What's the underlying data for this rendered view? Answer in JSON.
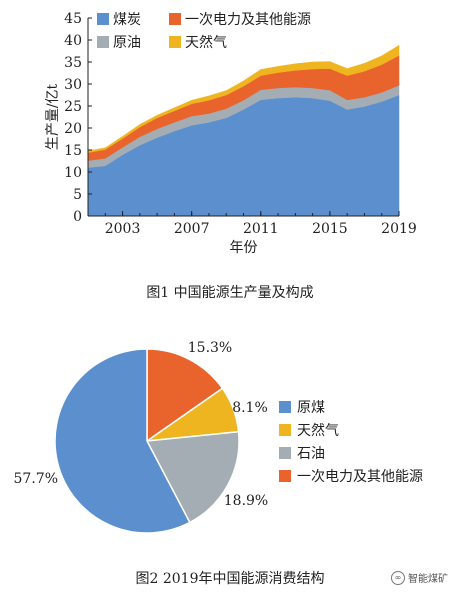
{
  "figure1": {
    "caption": "图1  中国能源生产量及构成",
    "chart_data": {
      "type": "area",
      "stacked": true,
      "x": [
        2001,
        2002,
        2003,
        2004,
        2005,
        2006,
        2007,
        2008,
        2009,
        2010,
        2011,
        2012,
        2013,
        2014,
        2015,
        2016,
        2017,
        2018,
        2019
      ],
      "series": [
        {
          "name": "煤炭",
          "color": "#5b8fce",
          "values": [
            11.0,
            11.4,
            13.9,
            16.1,
            17.8,
            19.3,
            20.6,
            21.3,
            22.3,
            24.2,
            26.4,
            26.8,
            27.0,
            26.8,
            26.2,
            24.2,
            24.9,
            26.0,
            27.5
          ]
        },
        {
          "name": "原油",
          "color": "#a3adb3",
          "values": [
            1.6,
            1.7,
            1.7,
            1.9,
            2.0,
            2.0,
            2.1,
            2.0,
            2.1,
            2.1,
            2.3,
            2.3,
            2.3,
            2.3,
            2.4,
            2.2,
            2.1,
            2.1,
            2.2
          ]
        },
        {
          "name": "一次电力及其他能源",
          "color": "#e8642c",
          "values": [
            1.8,
            2.0,
            2.0,
            2.2,
            2.5,
            2.6,
            2.8,
            3.0,
            3.1,
            3.2,
            3.2,
            3.5,
            3.8,
            4.3,
            4.9,
            5.5,
            5.9,
            6.3,
            6.8
          ]
        },
        {
          "name": "天然气",
          "color": "#efb521",
          "values": [
            0.4,
            0.4,
            0.5,
            0.6,
            0.6,
            0.7,
            0.8,
            1.0,
            1.0,
            1.2,
            1.4,
            1.4,
            1.5,
            1.6,
            1.6,
            1.6,
            1.8,
            2.0,
            2.3
          ]
        }
      ],
      "legend_order": [
        0,
        2,
        1,
        3
      ],
      "xlabel": "年份",
      "ylabel": "生产量/亿t",
      "xticks": [
        2003,
        2007,
        2011,
        2015,
        2019
      ],
      "yticks": [
        0,
        5,
        10,
        15,
        20,
        25,
        30,
        35,
        40,
        45
      ],
      "xlim": [
        2001,
        2019
      ],
      "ylim": [
        0,
        45
      ],
      "legend_position": "top-left",
      "grid": false
    }
  },
  "figure2": {
    "caption": "图2  2019年中国能源消费结构",
    "chart_data": {
      "type": "pie",
      "slices": [
        {
          "name": "一次电力及其他能源",
          "value": 15.3,
          "label": "15.3%",
          "color": "#e8642c"
        },
        {
          "name": "天然气",
          "value": 8.1,
          "label": "8.1%",
          "color": "#efb521"
        },
        {
          "name": "石油",
          "value": 18.9,
          "label": "18.9%",
          "color": "#a3adb3"
        },
        {
          "name": "原煤",
          "value": 57.7,
          "label": "57.7%",
          "color": "#5b8fce"
        }
      ],
      "legend_order": [
        3,
        1,
        2,
        0
      ],
      "legend_position": "right"
    }
  },
  "watermark": {
    "text": "智能煤矿"
  }
}
